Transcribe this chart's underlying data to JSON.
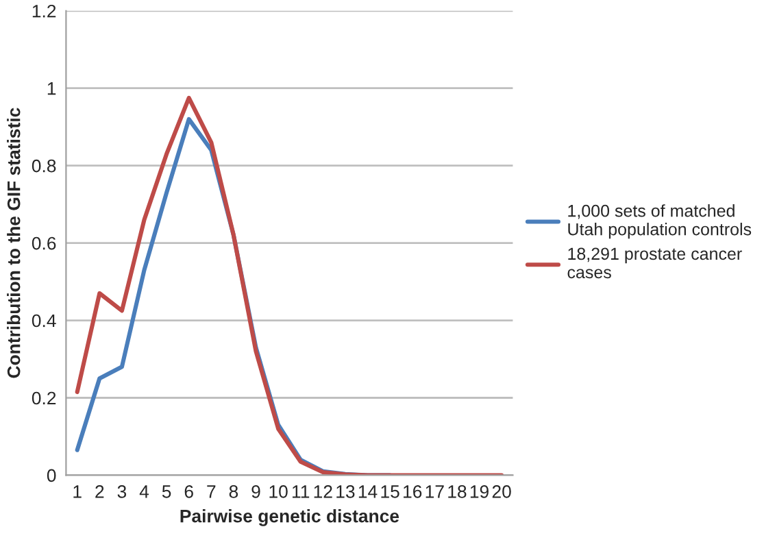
{
  "chart_data": {
    "type": "line",
    "xlabel": "Pairwise genetic distance",
    "ylabel": "Contribution to the GIF statistic",
    "categories": [
      "1",
      "2",
      "3",
      "4",
      "5",
      "6",
      "7",
      "8",
      "9",
      "10",
      "11",
      "12",
      "13",
      "14",
      "15",
      "16",
      "17",
      "18",
      "19",
      "20"
    ],
    "series": [
      {
        "name": "1,000 sets of matched Utah population controls",
        "color": "#4a7ebb",
        "values": [
          0.065,
          0.25,
          0.28,
          0.53,
          0.73,
          0.92,
          0.84,
          0.62,
          0.33,
          0.13,
          0.04,
          0.01,
          0.003,
          0,
          0,
          null,
          null,
          null,
          null,
          null
        ]
      },
      {
        "name": "18,291 prostate cancer cases",
        "color": "#be4b48",
        "values": [
          0.215,
          0.47,
          0.425,
          0.66,
          0.83,
          0.975,
          0.86,
          0.62,
          0.32,
          0.12,
          0.035,
          0.008,
          0.002,
          0,
          0,
          0,
          0,
          0,
          0,
          0
        ]
      }
    ],
    "ylim": [
      0,
      1.2
    ],
    "yticks": [
      0,
      0.2,
      0.4,
      0.6,
      0.8,
      1,
      1.2
    ],
    "grid": "y",
    "legend": "right",
    "marker": "none",
    "line_style": "solid"
  }
}
